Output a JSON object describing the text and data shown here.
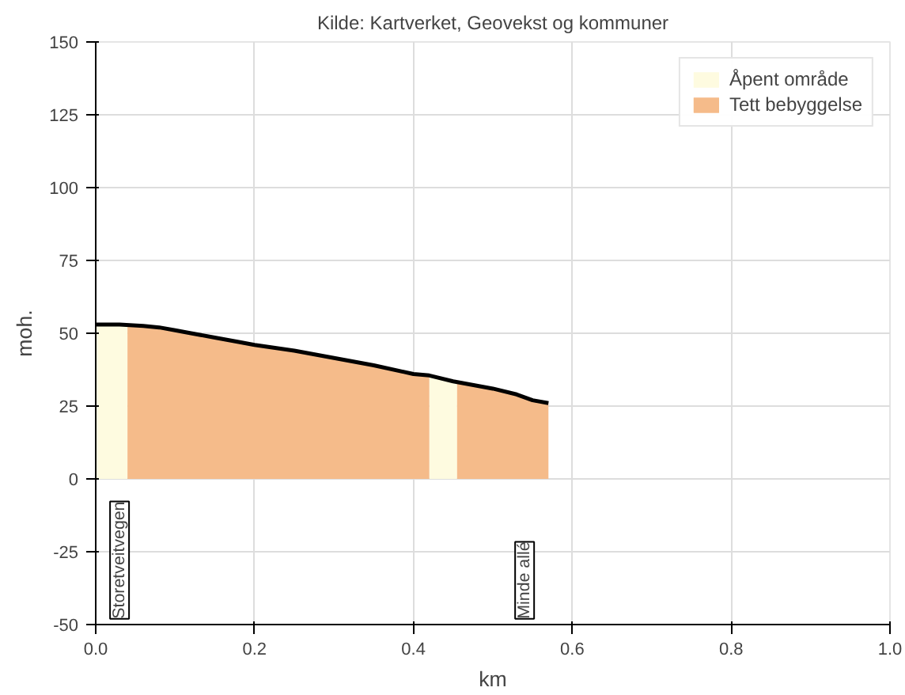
{
  "chart_data": {
    "type": "line",
    "title": "Kilde: Kartverket, Geovekst og kommuner",
    "xlabel": "km",
    "ylabel": "moh.",
    "xlim": [
      0,
      1
    ],
    "ylim": [
      -50,
      150
    ],
    "xticks": [
      {
        "value": 0,
        "label": "0.0"
      },
      {
        "value": 0.2,
        "label": "0.2"
      },
      {
        "value": 0.4,
        "label": "0.4"
      },
      {
        "value": 0.6,
        "label": "0.6"
      },
      {
        "value": 0.8,
        "label": "0.8"
      },
      {
        "value": 1,
        "label": "1.0"
      }
    ],
    "yticks": [
      -50,
      -25,
      0,
      25,
      50,
      75,
      100,
      125,
      150
    ],
    "grid": true,
    "legend": "top right",
    "series": [
      {
        "name": "Åpent område",
        "type": "area",
        "color": "#fefbe0",
        "x": [
          0,
          0.03,
          0.04,
          0.041,
          0.42,
          0.45,
          0.455
        ],
        "values": [
          53,
          53,
          52.8,
          null,
          35.5,
          33.5,
          33.2
        ]
      },
      {
        "name": "Tett bebyggelse",
        "type": "area",
        "color": "#f5bb8a",
        "x": [
          0.04,
          0.06,
          0.08,
          0.1,
          0.12,
          0.15,
          0.18,
          0.2,
          0.25,
          0.3,
          0.35,
          0.4,
          0.42,
          0.421,
          0.455,
          0.5,
          0.53,
          0.55,
          0.57
        ],
        "values": [
          52.8,
          52.5,
          52,
          51,
          50,
          48.5,
          47,
          46,
          44,
          41.5,
          39,
          36,
          35.5,
          null,
          33.2,
          31,
          29,
          27,
          26
        ]
      },
      {
        "color": "#000000",
        "x": [
          0,
          0.03,
          0.06,
          0.08,
          0.1,
          0.12,
          0.15,
          0.18,
          0.2,
          0.25,
          0.3,
          0.35,
          0.4,
          0.42,
          0.45,
          0.5,
          0.53,
          0.55,
          0.57
        ],
        "values": [
          53,
          53,
          52.5,
          52,
          51,
          50,
          48.5,
          47,
          46,
          44,
          41.5,
          39,
          36,
          35.5,
          33.5,
          31,
          29,
          27,
          26
        ]
      }
    ],
    "annotations": [
      "Storetveitvegen",
      "Minde allé"
    ]
  }
}
